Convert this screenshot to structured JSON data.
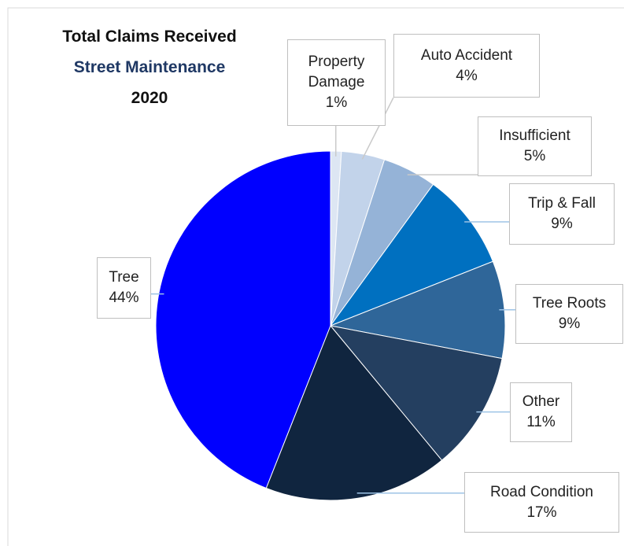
{
  "chart_data": {
    "type": "pie",
    "title": "Total Claims Received",
    "subtitle": "Street Maintenance",
    "subtitle2": "2020",
    "categories": [
      "Property Damage",
      "Auto Accident",
      "Insufficient",
      "Trip & Fall",
      "Tree Roots",
      "Other",
      "Road Condition",
      "Tree"
    ],
    "values": [
      1,
      4,
      5,
      9,
      9,
      11,
      17,
      44
    ],
    "value_labels": [
      "1%",
      "4%",
      "5%",
      "9%",
      "9%",
      "11%",
      "17%",
      "44%"
    ],
    "colors": [
      "#dde6f3",
      "#c2d3ea",
      "#95b3d7",
      "#0070c0",
      "#2f6699",
      "#243f60",
      "#10253f",
      "#0000ff"
    ]
  }
}
